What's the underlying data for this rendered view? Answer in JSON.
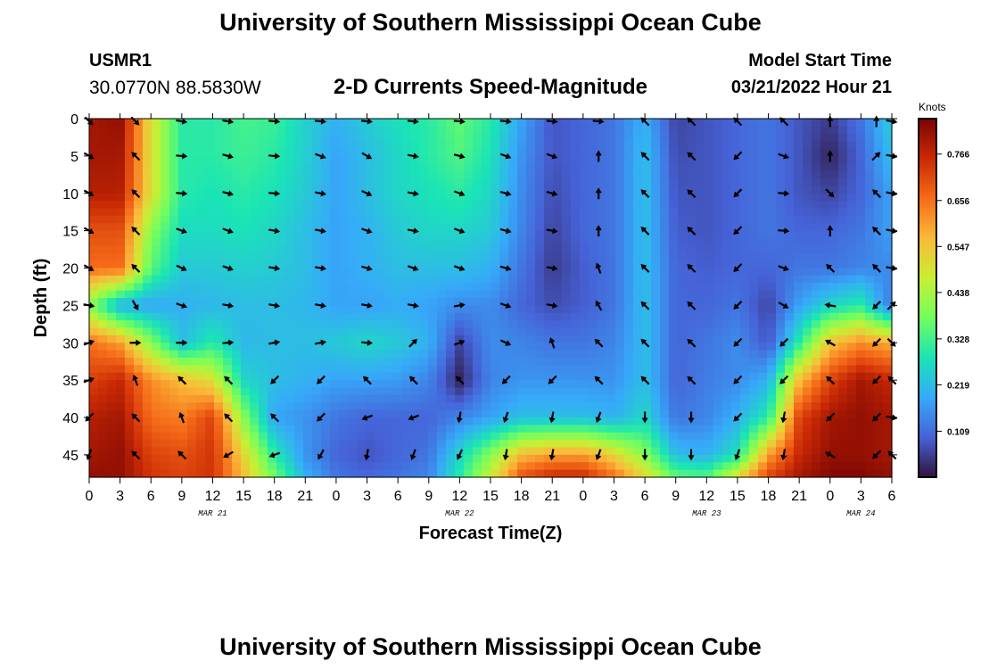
{
  "header": {
    "title": "University of Southern Mississippi Ocean Cube",
    "station_id": "USMR1",
    "station_coords": "30.0770N  88.5830W",
    "plot_title": "2-D Currents Speed-Magnitude",
    "start_label": "Model Start Time",
    "start_value": "03/21/2022 Hour 21"
  },
  "footer": {
    "title": "University of Southern Mississippi Ocean Cube"
  },
  "chart_data": {
    "type": "heatmap",
    "xlabel": "Forecast Time(Z)",
    "ylabel": "Depth (ft)",
    "colorbar_label": "Knots",
    "x_tick_labels": [
      "0",
      "3",
      "6",
      "9",
      "12",
      "15",
      "18",
      "21",
      "0",
      "3",
      "6",
      "9",
      "12",
      "15",
      "18",
      "21",
      "0",
      "3",
      "6",
      "9",
      "12",
      "15",
      "18",
      "21",
      "0",
      "3",
      "6"
    ],
    "x_hours_range": [
      0,
      78
    ],
    "date_labels": [
      {
        "hour": 12,
        "text": "MAR 21"
      },
      {
        "hour": 36,
        "text": "MAR 22"
      },
      {
        "hour": 60,
        "text": "MAR 23"
      },
      {
        "hour": 75,
        "text": "MAR 24"
      }
    ],
    "y_ticks": [
      0,
      5,
      10,
      15,
      20,
      25,
      30,
      35,
      40,
      45
    ],
    "ylim": [
      0,
      48
    ],
    "y_inverted": true,
    "colorbar_ticks": [
      0.766,
      0.656,
      0.547,
      0.438,
      0.328,
      0.219,
      0.109
    ],
    "color_range": [
      0,
      0.85
    ],
    "colormap": [
      "#30123b",
      "#4662d7",
      "#36aaf9",
      "#1ae4b6",
      "#72fe5e",
      "#c8ef34",
      "#faba39",
      "#f66b19",
      "#ca2a04",
      "#7a0403"
    ],
    "speed_field": {
      "hours": [
        0,
        3,
        6,
        9,
        12,
        15,
        18,
        21,
        24,
        27,
        30,
        33,
        36,
        39,
        42,
        45,
        48,
        51,
        54,
        57,
        60,
        63,
        66,
        69,
        72,
        75,
        78
      ],
      "depths": [
        0,
        5,
        10,
        15,
        20,
        25,
        30,
        35,
        40,
        45,
        48
      ],
      "values": [
        [
          0.8,
          0.82,
          0.5,
          0.3,
          0.3,
          0.33,
          0.32,
          0.25,
          0.2,
          0.24,
          0.28,
          0.3,
          0.36,
          0.3,
          0.18,
          0.08,
          0.1,
          0.12,
          0.2,
          0.06,
          0.08,
          0.1,
          0.12,
          0.08,
          0.05,
          0.12,
          0.25
        ],
        [
          0.8,
          0.8,
          0.5,
          0.3,
          0.3,
          0.32,
          0.3,
          0.25,
          0.18,
          0.22,
          0.26,
          0.3,
          0.34,
          0.28,
          0.16,
          0.08,
          0.1,
          0.12,
          0.22,
          0.07,
          0.08,
          0.1,
          0.12,
          0.08,
          0.02,
          0.1,
          0.22
        ],
        [
          0.78,
          0.78,
          0.5,
          0.3,
          0.28,
          0.3,
          0.28,
          0.24,
          0.18,
          0.22,
          0.26,
          0.28,
          0.3,
          0.26,
          0.15,
          0.07,
          0.1,
          0.12,
          0.22,
          0.08,
          0.08,
          0.1,
          0.12,
          0.08,
          0.06,
          0.1,
          0.18
        ],
        [
          0.7,
          0.7,
          0.4,
          0.27,
          0.27,
          0.28,
          0.26,
          0.22,
          0.18,
          0.2,
          0.24,
          0.26,
          0.26,
          0.24,
          0.14,
          0.06,
          0.1,
          0.12,
          0.22,
          0.09,
          0.08,
          0.1,
          0.12,
          0.1,
          0.1,
          0.12,
          0.18
        ],
        [
          0.66,
          0.66,
          0.35,
          0.24,
          0.24,
          0.25,
          0.24,
          0.22,
          0.18,
          0.2,
          0.22,
          0.22,
          0.22,
          0.2,
          0.12,
          0.05,
          0.09,
          0.12,
          0.22,
          0.1,
          0.09,
          0.1,
          0.1,
          0.12,
          0.12,
          0.14,
          0.15
        ],
        [
          0.4,
          0.2,
          0.18,
          0.2,
          0.21,
          0.22,
          0.22,
          0.21,
          0.18,
          0.18,
          0.19,
          0.18,
          0.15,
          0.15,
          0.1,
          0.07,
          0.09,
          0.12,
          0.22,
          0.1,
          0.1,
          0.12,
          0.06,
          0.18,
          0.26,
          0.3,
          0.12
        ],
        [
          0.66,
          0.6,
          0.4,
          0.22,
          0.3,
          0.21,
          0.22,
          0.22,
          0.24,
          0.26,
          0.24,
          0.2,
          0.06,
          0.15,
          0.14,
          0.12,
          0.12,
          0.14,
          0.22,
          0.1,
          0.12,
          0.15,
          0.08,
          0.3,
          0.55,
          0.62,
          0.58
        ],
        [
          0.72,
          0.76,
          0.62,
          0.56,
          0.5,
          0.26,
          0.22,
          0.2,
          0.18,
          0.18,
          0.17,
          0.14,
          0.02,
          0.14,
          0.16,
          0.16,
          0.16,
          0.16,
          0.22,
          0.1,
          0.13,
          0.15,
          0.2,
          0.56,
          0.72,
          0.8,
          0.76
        ],
        [
          0.78,
          0.8,
          0.66,
          0.64,
          0.72,
          0.4,
          0.18,
          0.16,
          0.12,
          0.1,
          0.1,
          0.1,
          0.14,
          0.18,
          0.22,
          0.22,
          0.22,
          0.2,
          0.26,
          0.12,
          0.14,
          0.2,
          0.3,
          0.72,
          0.8,
          0.82,
          0.8
        ],
        [
          0.8,
          0.82,
          0.72,
          0.7,
          0.74,
          0.52,
          0.3,
          0.16,
          0.1,
          0.08,
          0.1,
          0.12,
          0.26,
          0.4,
          0.56,
          0.6,
          0.6,
          0.52,
          0.4,
          0.22,
          0.2,
          0.28,
          0.6,
          0.76,
          0.82,
          0.82,
          0.8
        ],
        [
          0.82,
          0.82,
          0.74,
          0.72,
          0.74,
          0.56,
          0.38,
          0.2,
          0.12,
          0.1,
          0.12,
          0.14,
          0.3,
          0.48,
          0.7,
          0.76,
          0.76,
          0.66,
          0.52,
          0.36,
          0.34,
          0.52,
          0.72,
          0.8,
          0.84,
          0.84,
          0.82
        ]
      ]
    },
    "vectors": {
      "hours": [
        0,
        4.5,
        9,
        13.5,
        18,
        22.5,
        27,
        31.5,
        36,
        40.5,
        45,
        49.5,
        54,
        58.5,
        63,
        67.5,
        72,
        76.5,
        78
      ],
      "depths": [
        0,
        5,
        10,
        15,
        20,
        25,
        30,
        35,
        40,
        45
      ],
      "angles_deg": [
        [
          -45,
          -45,
          -10,
          -10,
          -5,
          -5,
          -5,
          -5,
          -5,
          -5,
          -5,
          -5,
          135,
          135,
          135,
          135,
          90,
          90,
          -10
        ],
        [
          -30,
          135,
          -5,
          -15,
          -5,
          -20,
          -30,
          -10,
          -15,
          -20,
          -20,
          90,
          135,
          135,
          -135,
          -20,
          90,
          45,
          -10
        ],
        [
          -30,
          135,
          -5,
          -15,
          -5,
          -10,
          -25,
          -10,
          -20,
          -15,
          -15,
          90,
          135,
          135,
          -135,
          -5,
          -45,
          135,
          -10
        ],
        [
          -30,
          135,
          -20,
          -20,
          -10,
          -10,
          -20,
          -10,
          -20,
          -15,
          -10,
          90,
          135,
          135,
          -135,
          -5,
          90,
          135,
          -10
        ],
        [
          -30,
          135,
          -25,
          -20,
          -10,
          -10,
          -15,
          -20,
          -20,
          -15,
          -10,
          110,
          135,
          135,
          -135,
          -20,
          135,
          135,
          -10
        ],
        [
          -10,
          -60,
          -20,
          -10,
          -10,
          -10,
          -10,
          -10,
          10,
          -20,
          -10,
          120,
          135,
          135,
          -135,
          -30,
          170,
          -135,
          45
        ],
        [
          20,
          0,
          0,
          5,
          10,
          10,
          -5,
          45,
          20,
          -25,
          110,
          135,
          135,
          135,
          -135,
          -135,
          150,
          -135,
          -45
        ],
        [
          20,
          110,
          135,
          135,
          -135,
          -135,
          135,
          135,
          135,
          -135,
          -135,
          135,
          135,
          135,
          -135,
          -135,
          135,
          -135,
          135
        ],
        [
          -135,
          135,
          110,
          135,
          135,
          -135,
          -160,
          -160,
          -100,
          -110,
          -100,
          -110,
          -90,
          -90,
          -135,
          -100,
          -135,
          -135,
          -10
        ],
        [
          -110,
          135,
          135,
          -150,
          -160,
          -120,
          -100,
          -110,
          -115,
          -100,
          -100,
          -110,
          -90,
          -90,
          -110,
          -100,
          150,
          -135,
          135
        ]
      ]
    }
  }
}
